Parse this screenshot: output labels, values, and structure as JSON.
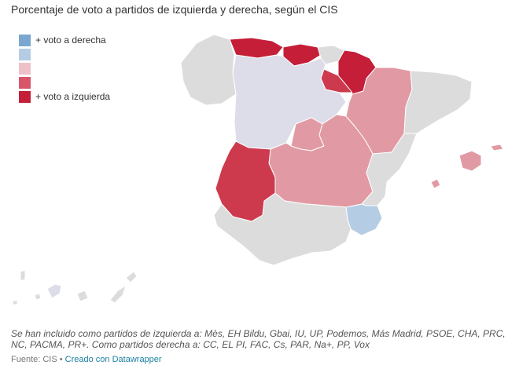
{
  "title": "Porcentaje de voto a partidos de izquierda y derecha, según el CIS",
  "legend": [
    {
      "label": "+ voto a derecha",
      "color": "#7aa7cf"
    },
    {
      "label": "",
      "color": "#b5cde4"
    },
    {
      "label": "",
      "color": "#eec1c8"
    },
    {
      "label": "",
      "color": "#d9566a"
    },
    {
      "label": "+ voto a izquierda",
      "color": "#c41e38"
    }
  ],
  "colors": {
    "neutral": "#dcdcdc",
    "lilac": "#dddde9",
    "light_red": "#e19aa3",
    "mid_red": "#cd3a4e",
    "dark_red": "#c41e38",
    "light_blue": "#b5cde4"
  },
  "note": "Se han incluido como partidos de izquierda a: Mès, EH Bildu, Gbai, IU, UP, Podemos, Más Madrid, PSOE, CHA, PRC, NC, PACMA, PR+. Como partidos derecha a: CC, EL PI, FAC, Cs, PAR, Na+, PP, Vox",
  "source": {
    "label": "Fuente: CIS",
    "separator": " • ",
    "credit": "Creado con Datawrapper"
  }
}
